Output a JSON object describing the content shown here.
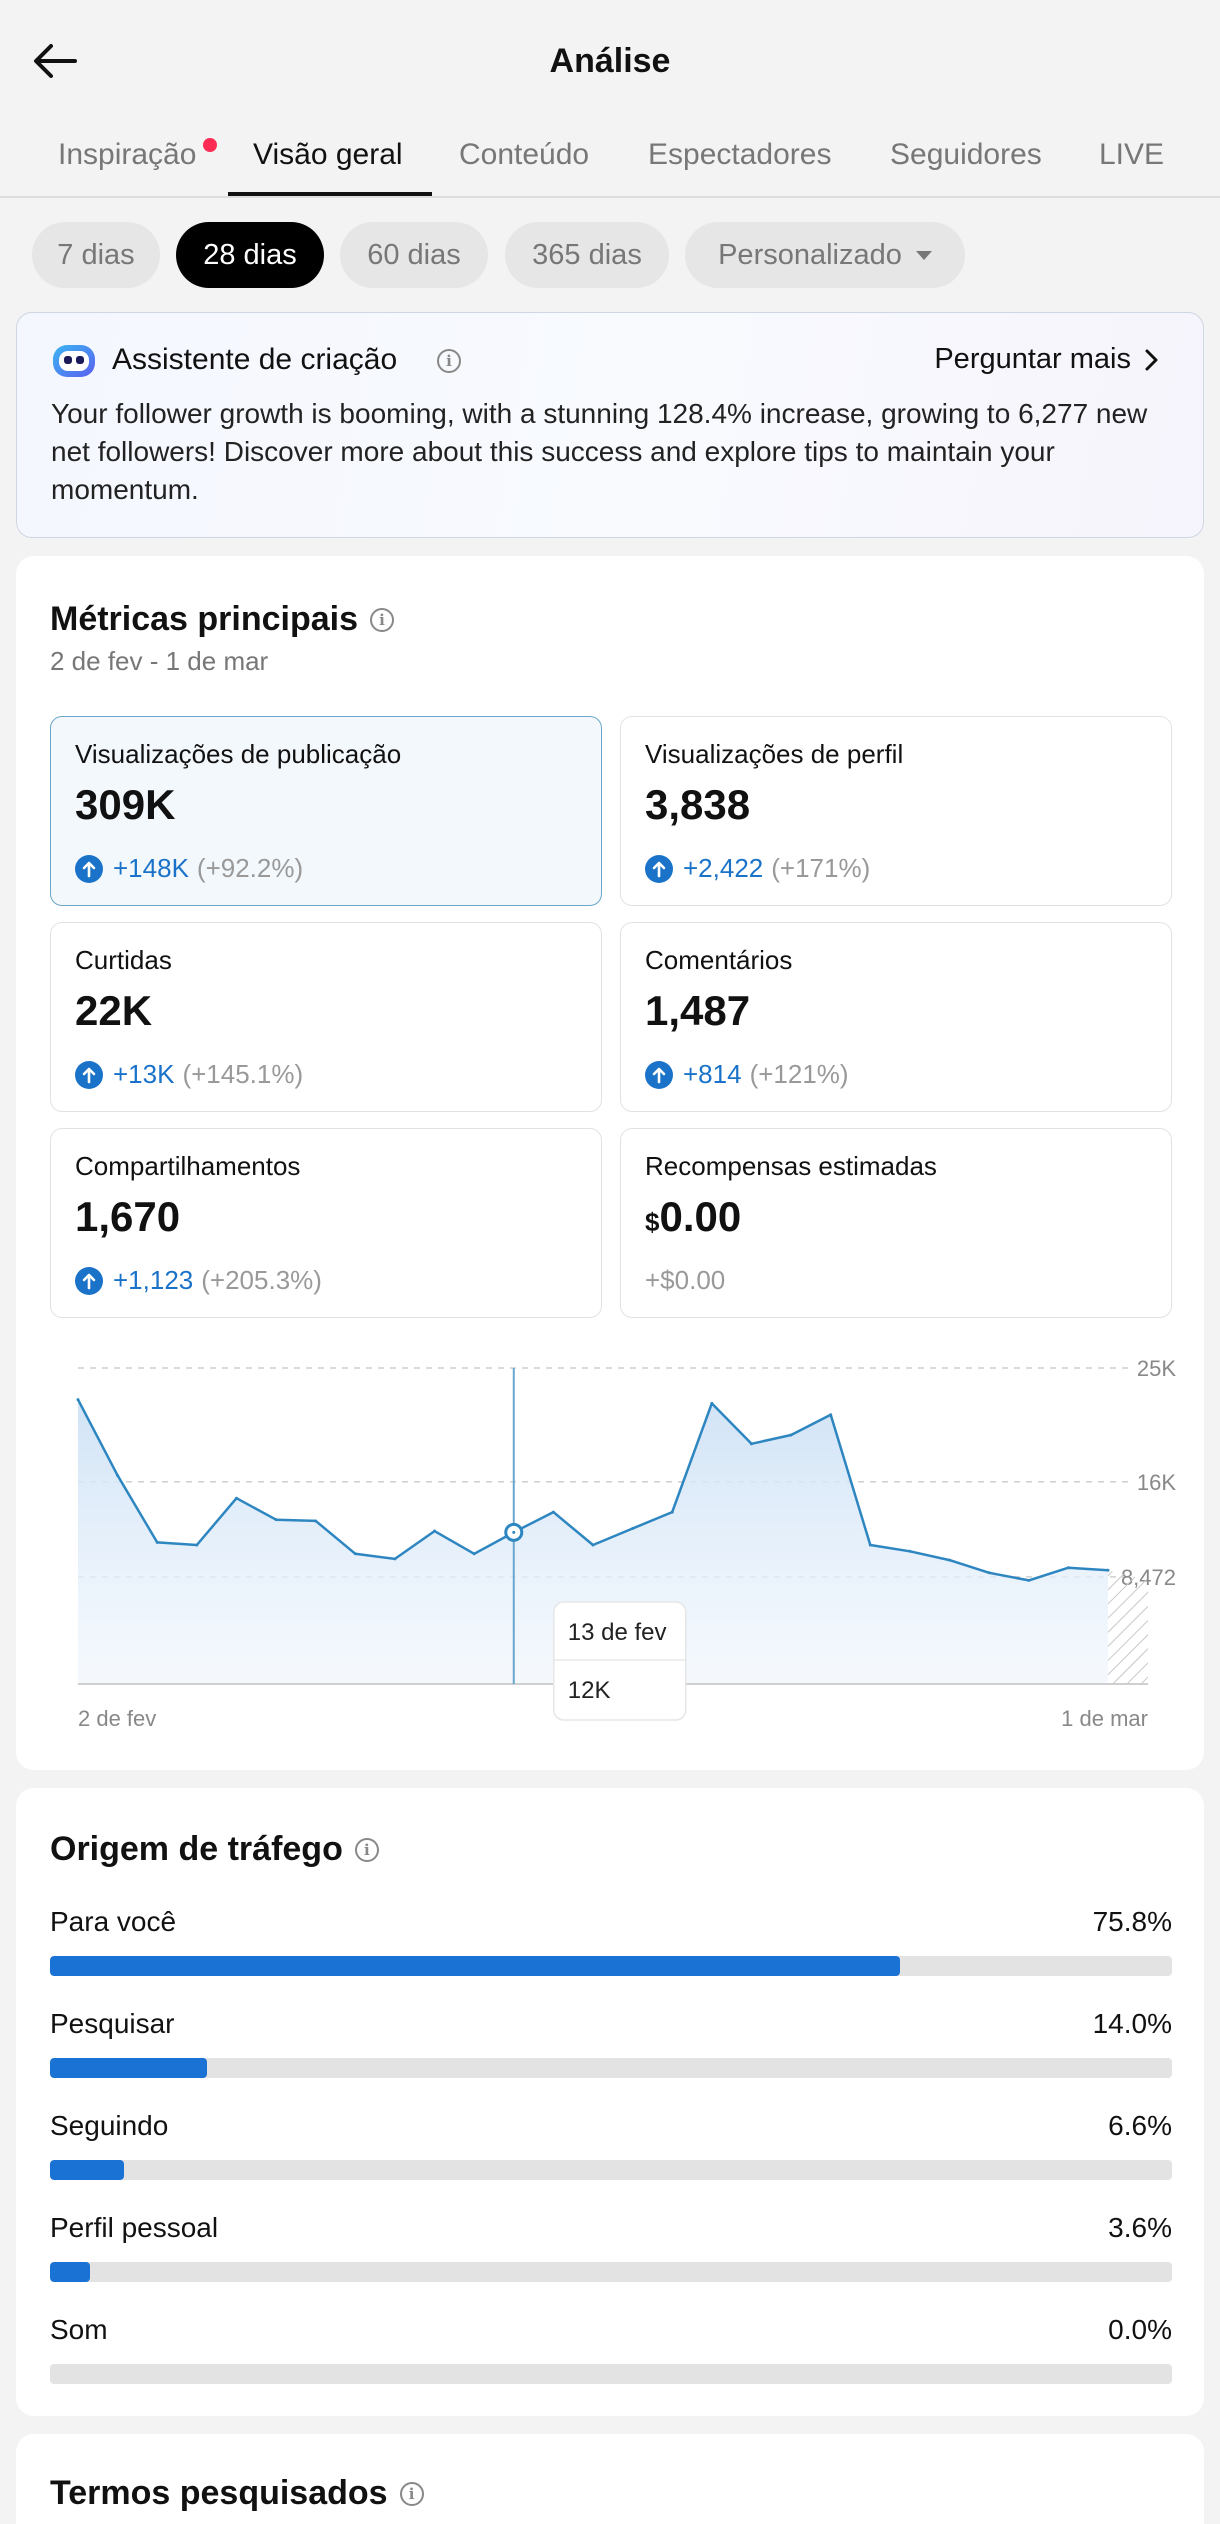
{
  "header": {
    "title": "Análise"
  },
  "tabs": [
    {
      "label": "Inspiração",
      "has_notification": true
    },
    {
      "label": "Visão geral",
      "active": true
    },
    {
      "label": "Conteúdo"
    },
    {
      "label": "Espectadores"
    },
    {
      "label": "Seguidores"
    },
    {
      "label": "LIVE"
    }
  ],
  "ranges": [
    {
      "label": "7 dias"
    },
    {
      "label": "28 dias",
      "active": true
    },
    {
      "label": "60 dias"
    },
    {
      "label": "365 dias"
    },
    {
      "label": "Personalizado"
    }
  ],
  "assistant": {
    "title": "Assistente de criação",
    "ask_more": "Perguntar mais",
    "text": "Your follower growth is booming, with a stunning 128.4% increase, growing to 6,277 new net followers! Discover more about this success and explore tips to maintain your momentum."
  },
  "metrics": {
    "title": "Métricas principais",
    "date_range": "2 de fev - 1 de mar",
    "cards": [
      {
        "label": "Visualizações de publicação",
        "value": "309K",
        "change": "+148K",
        "pct": "(+92.2%)",
        "selected": true
      },
      {
        "label": "Visualizações de perfil",
        "value": "3,838",
        "change": "+2,422",
        "pct": "(+171%)"
      },
      {
        "label": "Curtidas",
        "value": "22K",
        "change": "+13K",
        "pct": "(+145.1%)"
      },
      {
        "label": "Comentários",
        "value": "1,487",
        "change": "+814",
        "pct": "(+121%)"
      },
      {
        "label": "Compartilhamentos",
        "value": "1,670",
        "change": "+1,123",
        "pct": "(+205.3%)"
      },
      {
        "label": "Recompensas estimadas",
        "currency": "$",
        "value": "0.00",
        "plain_change": "+$0.00"
      }
    ]
  },
  "chart_data": {
    "type": "area",
    "series": [
      {
        "values": [
          22500,
          16500,
          11200,
          11000,
          14700,
          13000,
          12900,
          10300,
          9900,
          12100,
          10300,
          12000,
          13600,
          11000,
          12300,
          13600,
          22200,
          19000,
          19700,
          21300,
          11000,
          10500,
          9800,
          8800,
          8200,
          9200,
          9000
        ]
      }
    ],
    "x_labels": [
      "2 de fev",
      "1 de mar"
    ],
    "y_ticks": [
      "25K",
      "16K",
      "8,472"
    ],
    "y_tick_values": [
      25000,
      16000,
      8472
    ],
    "ylim": [
      0,
      25000
    ],
    "grid": true,
    "tooltip": {
      "date": "13 de fev",
      "value": "12K",
      "index": 11
    },
    "colors": {
      "line": "#2e86c1",
      "fill": "#dbe9f7"
    }
  },
  "traffic": {
    "title": "Origem de tráfego",
    "sources": [
      {
        "label": "Para você",
        "value": "75.8%",
        "fraction": 0.758
      },
      {
        "label": "Pesquisar",
        "value": "14.0%",
        "fraction": 0.14
      },
      {
        "label": "Seguindo",
        "value": "6.6%",
        "fraction": 0.066
      },
      {
        "label": "Perfil pessoal",
        "value": "3.6%",
        "fraction": 0.036
      },
      {
        "label": "Som",
        "value": "0.0%",
        "fraction": 0.0
      }
    ]
  },
  "search_terms": {
    "title": "Termos pesquisados"
  },
  "colors": {
    "accent": "#1a73d4",
    "notification": "#fe2c55",
    "active_chip": "#000000"
  }
}
